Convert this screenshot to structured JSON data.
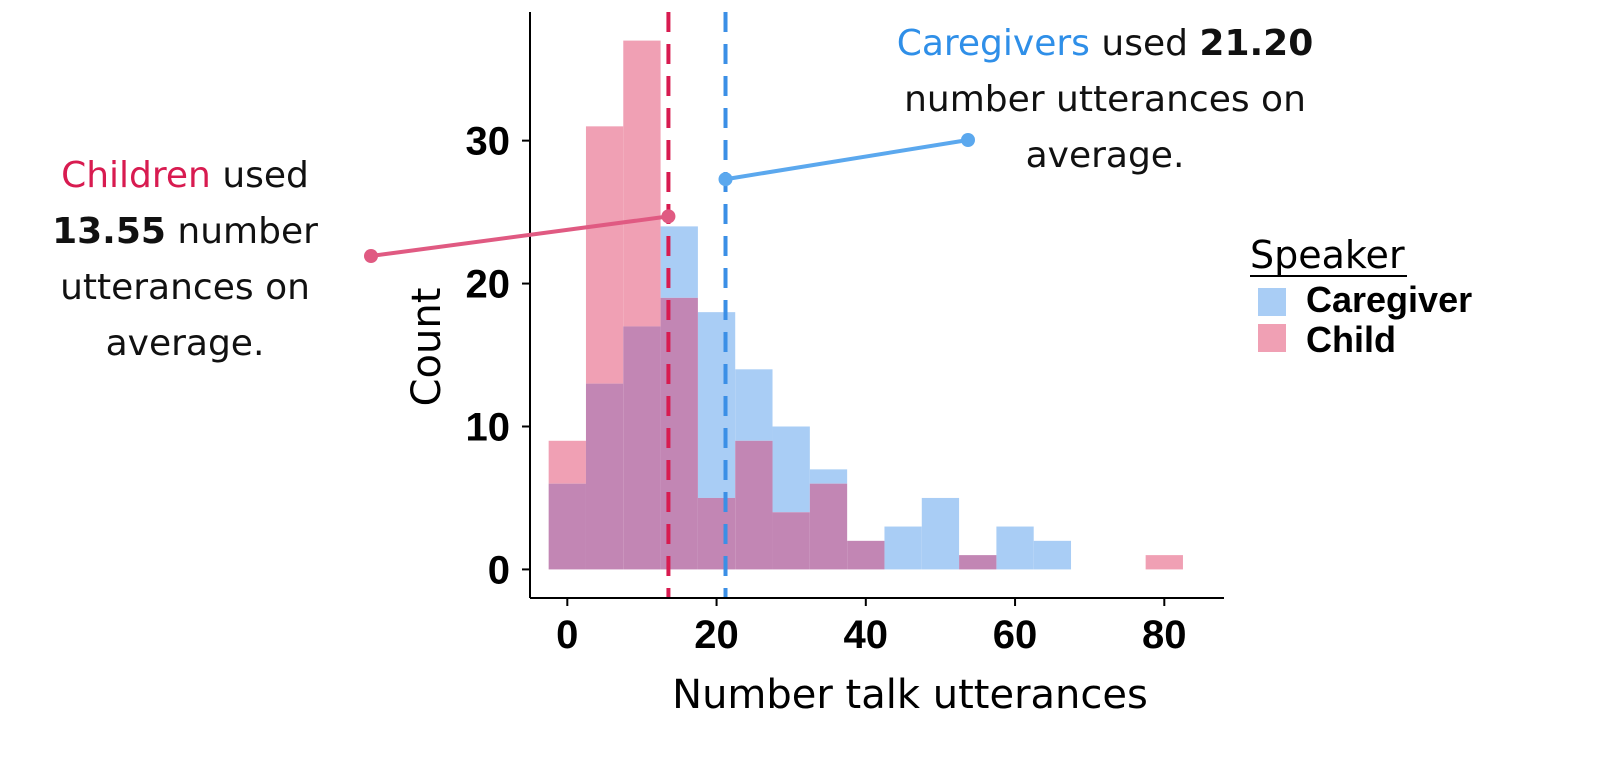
{
  "chart_data": {
    "type": "bar",
    "subtype": "overlaid-histogram",
    "xlabel": "Number talk utterances",
    "ylabel": "Count",
    "xlim": [
      -5,
      88
    ],
    "ylim": [
      -2,
      39
    ],
    "x_ticks": [
      0,
      20,
      40,
      60,
      80
    ],
    "y_ticks": [
      0,
      10,
      20,
      30
    ],
    "bin_width": 5,
    "bin_starts": [
      -2.5,
      2.5,
      7.5,
      12.5,
      17.5,
      22.5,
      27.5,
      32.5,
      37.5,
      42.5,
      47.5,
      52.5,
      57.5,
      62.5,
      67.5,
      72.5,
      77.5
    ],
    "series": [
      {
        "name": "Caregiver",
        "color": "#a9cdf5",
        "values": [
          6,
          13,
          17,
          24,
          18,
          14,
          10,
          7,
          2,
          3,
          5,
          1,
          3,
          2,
          0,
          0,
          0
        ]
      },
      {
        "name": "Child",
        "color": "#f0a0b4",
        "values": [
          9,
          31,
          37,
          19,
          5,
          9,
          4,
          6,
          2,
          0,
          0,
          1,
          0,
          0,
          0,
          0,
          1
        ]
      }
    ],
    "overlap_color": "#c286b4",
    "mean_lines": [
      {
        "series": "Child",
        "value": 13.55,
        "color": "#d81b50"
      },
      {
        "series": "Caregiver",
        "value": 21.2,
        "color": "#3b8fe6"
      }
    ],
    "legend": {
      "title": "Speaker",
      "position": "right",
      "items": [
        {
          "label": "Caregiver",
          "color": "#a9cdf5"
        },
        {
          "label": "Child",
          "color": "#f0a0b4"
        }
      ]
    },
    "grid": false,
    "annotations": {
      "child": {
        "highlight": "Children",
        "text1": "used",
        "value": "13.55",
        "text2": "number",
        "text3": "utterances on",
        "text4": "average.",
        "color": "#d81b50",
        "connector_color": "#e05a82",
        "point": {
          "x": 13.55,
          "y": 24.7
        }
      },
      "caregiver": {
        "highlight": "Caregivers",
        "text1": "used",
        "value": "21.20",
        "text2": "number utterances on",
        "text3": "average.",
        "color": "#2f8fe8",
        "connector_color": "#5ba8ee",
        "point": {
          "x": 21.2,
          "y": 27.3
        }
      }
    }
  }
}
